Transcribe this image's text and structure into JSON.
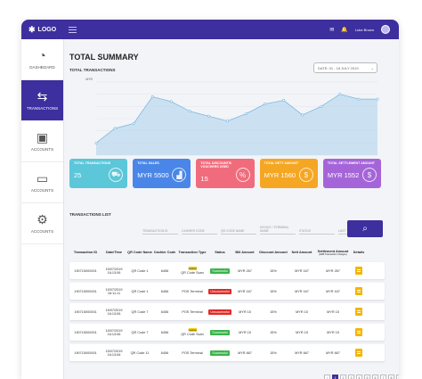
{
  "topbar": {
    "logo_text": "LOGO",
    "user_name": "Luke Brown"
  },
  "sidebar": {
    "items": [
      {
        "label": "DASHBOARD",
        "icon": "dashboard-icon",
        "glyph": "◔"
      },
      {
        "label": "TRANSACTIONS",
        "icon": "transfer-icon",
        "glyph": "⇆"
      },
      {
        "label": "ACCOUNTS",
        "icon": "briefcase-icon",
        "glyph": "▣"
      },
      {
        "label": "ACCOUNTS",
        "icon": "card-icon",
        "glyph": "▭"
      },
      {
        "label": "ACCOUNTS",
        "icon": "gear-icon",
        "glyph": "⚙"
      }
    ]
  },
  "main": {
    "title": "TOTAL SUMMARY",
    "date_range": "DATE: 01 - 18 JULY 2019",
    "chart_label": "TOTAL TRANSACTIONS",
    "list_label": "TRANSACTIONS LIST"
  },
  "chart_data": {
    "type": "area",
    "ylabel": "MYR",
    "y": [
      10,
      22,
      26,
      48,
      44,
      36,
      32,
      28,
      34,
      42,
      45,
      33,
      40,
      50,
      46,
      46
    ],
    "ylim": [
      0,
      60
    ],
    "color": "#b9d8ee",
    "line_color": "#7bb8e0"
  },
  "cards": [
    {
      "label": "TOTAL TRANSACTIONS",
      "value": "25",
      "color": "#5cc7d9",
      "glyph": "⛟"
    },
    {
      "label": "TOTAL SALES",
      "value": "MYR 5500",
      "color": "#4a86e8",
      "glyph": "▟"
    },
    {
      "label": "TOTAL DISCOUNTS/ VOUCHERS USED",
      "value": "15",
      "color": "#f06c7d",
      "glyph": "%"
    },
    {
      "label": "TOTAL NETT AMOUNT",
      "value": "MYR 1560",
      "color": "#f5a623",
      "glyph": "$"
    },
    {
      "label": "TOTAL SETTLEMENT AMOUNT",
      "value": "MYR 1552",
      "color": "#a565d9",
      "glyph": "$"
    }
  ],
  "filters": [
    "TRANSACTION ID",
    "CASHIER CODE",
    "QR CODE NAME",
    "DEVICE / TERMINAL NAME",
    "STATUS",
    "LAST 7 DAYS"
  ],
  "table": {
    "headers": [
      "Transaction ID",
      "Date/Time",
      "QR Code Name",
      "Cashier Code",
      "Transaction Type",
      "Status",
      "Bill Amount",
      "Discount Amount",
      "Nett Amount",
      "Settlement Amount",
      "Details"
    ],
    "settlement_sub": "(EZB Transaction Charges)",
    "rows": [
      {
        "id": "190715000001",
        "date": "15/07/2019",
        "time": "16:13:06",
        "qr": "QR Code 1",
        "cashier": "6456",
        "type": "QR Code Scan",
        "qr_tag": "Cashier",
        "status": "Successful",
        "status_color": "#39b54a",
        "bill": "MYR 267",
        "discount": "15%",
        "nett": "MYR 167",
        "settlement": "MYR 267"
      },
      {
        "id": "190715000001",
        "date": "15/07/2019",
        "time": "16:11:11",
        "qr": "QR Code 1",
        "cashier": "6456",
        "type": "POS Terminal",
        "qr_tag": "",
        "status": "Unsuccessful",
        "status_color": "#e02b27",
        "bill": "MYR 167",
        "discount": "15%",
        "nett": "MYR 167",
        "settlement": "MYR 167"
      },
      {
        "id": "190715000001",
        "date": "15/07/2019",
        "time": "16:13:06",
        "qr": "QR Code 7",
        "cashier": "6456",
        "type": "POS Terminal",
        "qr_tag": "",
        "status": "Unsuccessful",
        "status_color": "#e02b27",
        "bill": "MYR 15",
        "discount": "15%",
        "nett": "MYR 15",
        "settlement": "MYR 15"
      },
      {
        "id": "190715000001",
        "date": "15/07/2019",
        "time": "16:13:06",
        "qr": "QR Code 7",
        "cashier": "6456",
        "type": "QR Code Scan",
        "qr_tag": "Cashier",
        "status": "Successful",
        "status_color": "#39b54a",
        "bill": "MYR 15",
        "discount": "15%",
        "nett": "MYR 15",
        "settlement": "MYR 15"
      },
      {
        "id": "190715000001",
        "date": "15/07/2019",
        "time": "16:13:06",
        "qr": "QR Code 11",
        "cashier": "6456",
        "type": "POS Terminal",
        "qr_tag": "",
        "status": "Successful",
        "status_color": "#39b54a",
        "bill": "MYR 667",
        "discount": "15%",
        "nett": "MYR 667",
        "settlement": "MYR 667"
      }
    ]
  },
  "pagination": {
    "pages": [
      "1",
      "2",
      "3",
      "4",
      "5",
      "6",
      "7",
      "8",
      "9"
    ],
    "prev": "‹",
    "next": "›"
  }
}
